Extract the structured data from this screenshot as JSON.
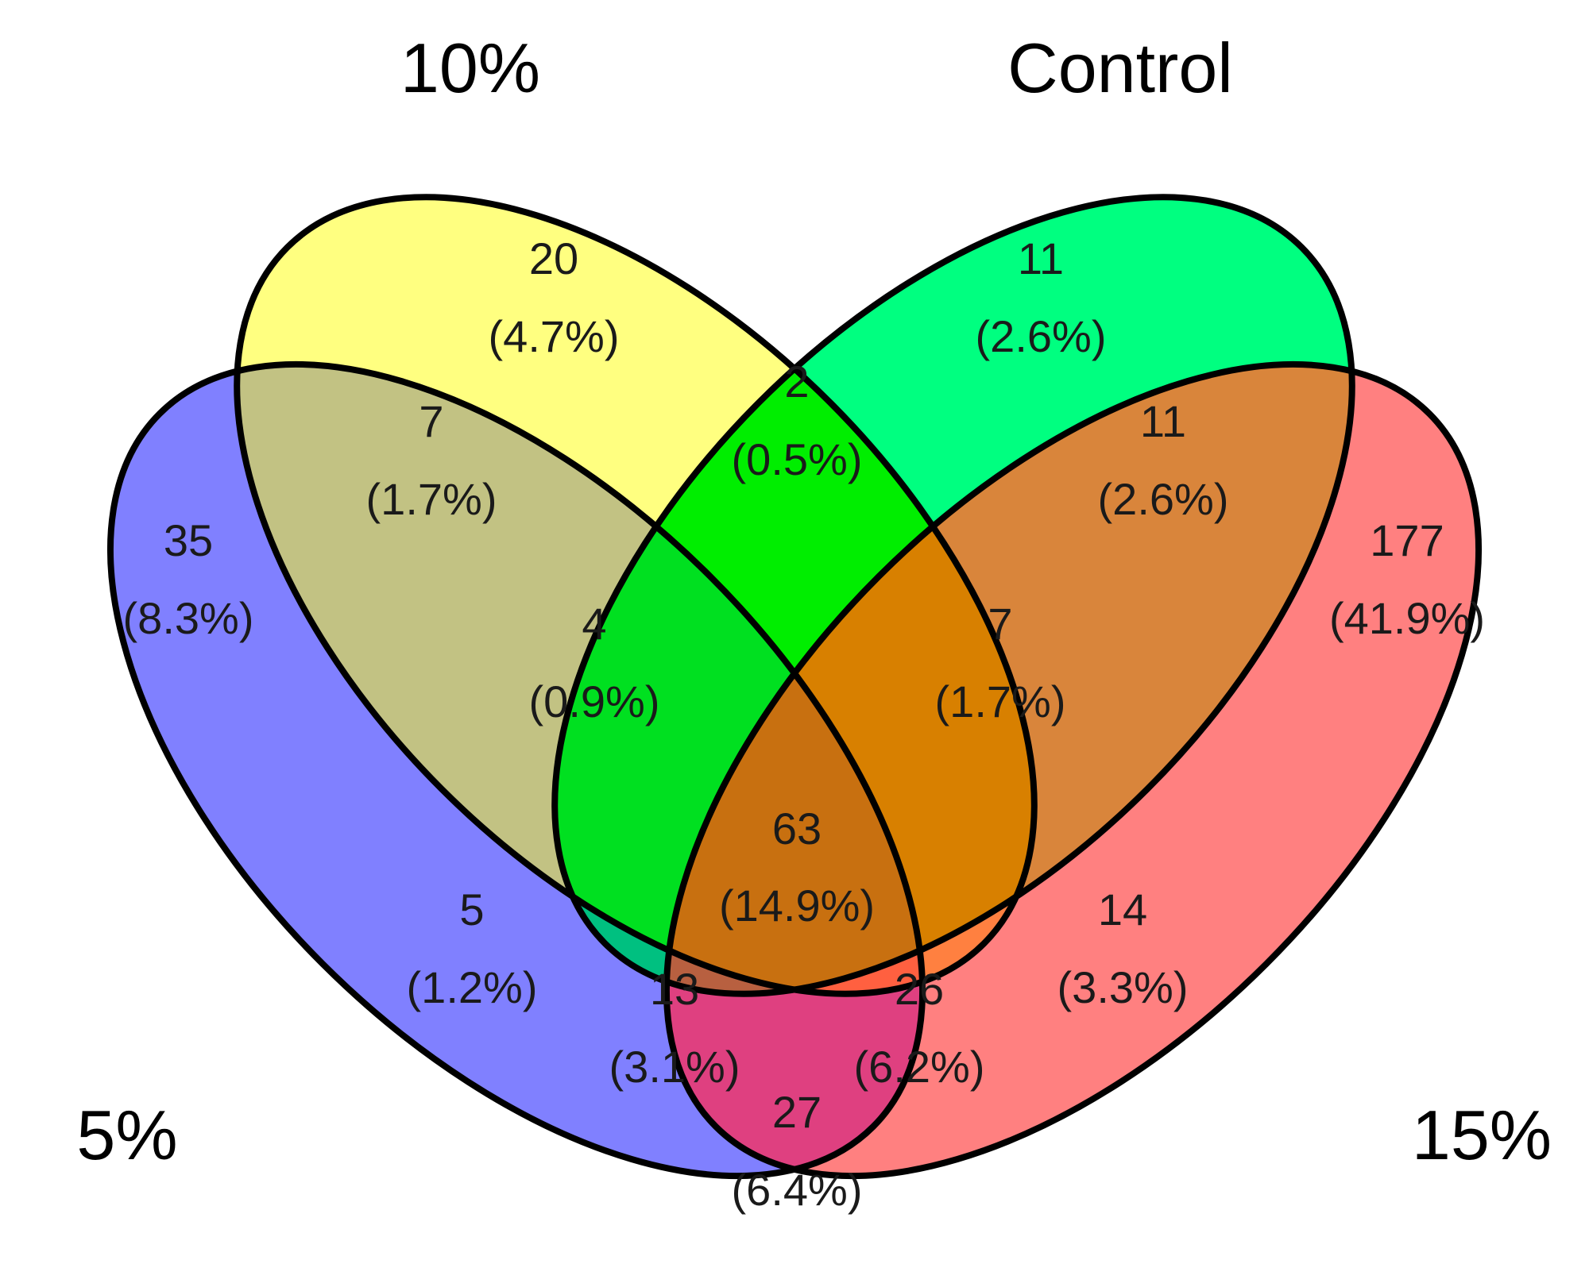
{
  "sets": [
    {
      "key": "s5",
      "label": "5%",
      "color": "#8080ff"
    },
    {
      "key": "s10",
      "label": "10%",
      "color": "#ffff80"
    },
    {
      "key": "control",
      "label": "Control",
      "color": "#00ff80"
    },
    {
      "key": "s15",
      "label": "15%",
      "color": "#ff8080"
    }
  ],
  "region_colors": {
    "s5_only": "#8080ff",
    "s10_only": "#ffff80",
    "control_only": "#00ff80",
    "s15_only": "#ff8080",
    "s5_s10": "#c2c283",
    "s10_control": "#00ee00",
    "control_s15": "#d9853b",
    "s5_control": "#00c080",
    "s10_s15": "#ff8040",
    "s5_s10_control": "#00e020",
    "s10_control_s15": "#d88000",
    "s5_s15": "#df4080",
    "s5_s10_s15": "#ff6040",
    "s5_control_s15": "#b86040",
    "all": "#c87010"
  },
  "regions": [
    {
      "id": "s5_only",
      "count": "35",
      "pct": "(8.3%)"
    },
    {
      "id": "s10_only",
      "count": "20",
      "pct": "(4.7%)"
    },
    {
      "id": "control_only",
      "count": "11",
      "pct": "(2.6%)"
    },
    {
      "id": "s15_only",
      "count": "177",
      "pct": "(41.9%)"
    },
    {
      "id": "s5_s10",
      "count": "7",
      "pct": "(1.7%)"
    },
    {
      "id": "s10_control",
      "count": "2",
      "pct": "(0.5%)"
    },
    {
      "id": "control_s15",
      "count": "11",
      "pct": "(2.6%)"
    },
    {
      "id": "s5_s10_control",
      "count": "4",
      "pct": "(0.9%)"
    },
    {
      "id": "s10_control_s15",
      "count": "7",
      "pct": "(1.7%)"
    },
    {
      "id": "s5_control",
      "count": "5",
      "pct": "(1.2%)"
    },
    {
      "id": "all",
      "count": "63",
      "pct": "(14.9%)"
    },
    {
      "id": "s10_s15",
      "count": "14",
      "pct": "(3.3%)"
    },
    {
      "id": "s5_control_s15",
      "count": "13",
      "pct": "(3.1%)"
    },
    {
      "id": "s5_s10_s15",
      "count": "26",
      "pct": "(6.2%)"
    },
    {
      "id": "s5_s15",
      "count": "27",
      "pct": "(6.4%)"
    }
  ]
}
